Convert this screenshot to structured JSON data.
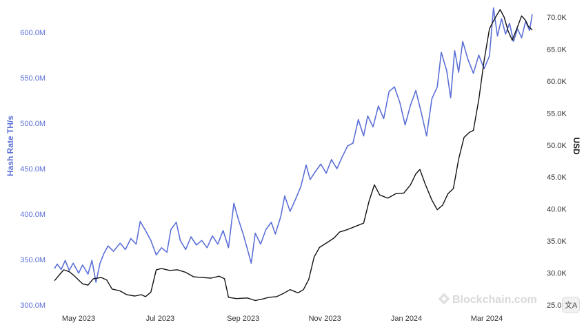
{
  "chart_data": {
    "type": "line",
    "xlabel": "",
    "x_ticks": [
      "May 2023",
      "Jul 2023",
      "Sep 2023",
      "Nov 2023",
      "Jan 2024",
      "Mar 2024"
    ],
    "y_left": {
      "label": "Hash Rate TH/s",
      "ticks": [
        "300.0M",
        "350.0M",
        "400.0M",
        "450.0M",
        "500.0M",
        "550.0M",
        "600.0M"
      ],
      "range": [
        300,
        630
      ],
      "unit": "M TH/s"
    },
    "y_right": {
      "label": "USD",
      "ticks": [
        "25.0K",
        "30.0K",
        "35.0K",
        "40.0K",
        "45.0K",
        "50.0K",
        "55.0K",
        "60.0K",
        "65.0K",
        "70.0K"
      ],
      "range": [
        24500,
        71800
      ],
      "unit": "USD"
    },
    "series": [
      {
        "axis": "left",
        "color": "#5b6fd6",
        "points": [
          [
            "2023-04-13",
            340
          ],
          [
            "2023-04-15",
            345
          ],
          [
            "2023-04-18",
            339
          ],
          [
            "2023-04-21",
            349
          ],
          [
            "2023-04-24",
            338
          ],
          [
            "2023-04-27",
            346
          ],
          [
            "2023-05-01",
            335
          ],
          [
            "2023-05-04",
            344
          ],
          [
            "2023-05-08",
            334
          ],
          [
            "2023-05-11",
            349
          ],
          [
            "2023-05-14",
            325
          ],
          [
            "2023-05-17",
            346
          ],
          [
            "2023-05-20",
            357
          ],
          [
            "2023-05-23",
            365
          ],
          [
            "2023-05-27",
            359
          ],
          [
            "2023-06-01",
            368
          ],
          [
            "2023-06-05",
            361
          ],
          [
            "2023-06-09",
            373
          ],
          [
            "2023-06-13",
            367
          ],
          [
            "2023-06-16",
            392
          ],
          [
            "2023-06-20",
            382
          ],
          [
            "2023-06-24",
            371
          ],
          [
            "2023-06-28",
            355
          ],
          [
            "2023-07-02",
            363
          ],
          [
            "2023-07-06",
            358
          ],
          [
            "2023-07-09",
            383
          ],
          [
            "2023-07-13",
            391
          ],
          [
            "2023-07-16",
            371
          ],
          [
            "2023-07-20",
            361
          ],
          [
            "2023-07-24",
            375
          ],
          [
            "2023-07-28",
            366
          ],
          [
            "2023-08-01",
            371
          ],
          [
            "2023-08-05",
            363
          ],
          [
            "2023-08-09",
            376
          ],
          [
            "2023-08-13",
            367
          ],
          [
            "2023-08-17",
            382
          ],
          [
            "2023-08-21",
            363
          ],
          [
            "2023-08-25",
            412
          ],
          [
            "2023-08-28",
            396
          ],
          [
            "2023-09-01",
            378
          ],
          [
            "2023-09-04",
            362
          ],
          [
            "2023-09-07",
            346
          ],
          [
            "2023-09-10",
            379
          ],
          [
            "2023-09-14",
            367
          ],
          [
            "2023-09-18",
            383
          ],
          [
            "2023-09-22",
            391
          ],
          [
            "2023-09-25",
            378
          ],
          [
            "2023-09-29",
            397
          ],
          [
            "2023-10-02",
            420
          ],
          [
            "2023-10-06",
            403
          ],
          [
            "2023-10-10",
            416
          ],
          [
            "2023-10-14",
            430
          ],
          [
            "2023-10-18",
            454
          ],
          [
            "2023-10-21",
            438
          ],
          [
            "2023-10-25",
            447
          ],
          [
            "2023-10-29",
            455
          ],
          [
            "2023-11-02",
            445
          ],
          [
            "2023-11-06",
            460
          ],
          [
            "2023-11-10",
            450
          ],
          [
            "2023-11-14",
            463
          ],
          [
            "2023-11-18",
            475
          ],
          [
            "2023-11-22",
            478
          ],
          [
            "2023-11-26",
            504
          ],
          [
            "2023-11-30",
            486
          ],
          [
            "2023-12-03",
            508
          ],
          [
            "2023-12-07",
            496
          ],
          [
            "2023-12-11",
            519
          ],
          [
            "2023-12-15",
            505
          ],
          [
            "2023-12-19",
            535
          ],
          [
            "2023-12-23",
            540
          ],
          [
            "2023-12-27",
            523
          ],
          [
            "2023-12-31",
            498
          ],
          [
            "2024-01-04",
            520
          ],
          [
            "2024-01-08",
            536
          ],
          [
            "2024-01-12",
            512
          ],
          [
            "2024-01-16",
            486
          ],
          [
            "2024-01-20",
            527
          ],
          [
            "2024-01-24",
            540
          ],
          [
            "2024-01-27",
            578
          ],
          [
            "2024-01-31",
            558
          ],
          [
            "2024-02-03",
            528
          ],
          [
            "2024-02-06",
            580
          ],
          [
            "2024-02-09",
            556
          ],
          [
            "2024-02-12",
            590
          ],
          [
            "2024-02-16",
            570
          ],
          [
            "2024-02-20",
            555
          ],
          [
            "2024-02-24",
            575
          ],
          [
            "2024-02-28",
            560
          ],
          [
            "2024-03-03",
            574
          ],
          [
            "2024-03-06",
            627
          ],
          [
            "2024-03-09",
            596
          ],
          [
            "2024-03-12",
            615
          ],
          [
            "2024-03-15",
            598
          ],
          [
            "2024-03-18",
            610
          ],
          [
            "2024-03-21",
            590
          ],
          [
            "2024-03-24",
            604
          ],
          [
            "2024-03-27",
            594
          ],
          [
            "2024-03-30",
            612
          ],
          [
            "2024-04-02",
            602
          ],
          [
            "2024-04-04",
            620
          ]
        ]
      },
      {
        "axis": "right",
        "color": "#111111",
        "points": [
          [
            "2023-04-13",
            28800
          ],
          [
            "2023-04-17",
            29800
          ],
          [
            "2023-04-20",
            30500
          ],
          [
            "2023-04-24",
            30200
          ],
          [
            "2023-04-27",
            29700
          ],
          [
            "2023-05-01",
            28900
          ],
          [
            "2023-05-04",
            28300
          ],
          [
            "2023-05-08",
            28100
          ],
          [
            "2023-05-12",
            29100
          ],
          [
            "2023-05-18",
            29300
          ],
          [
            "2023-05-22",
            28900
          ],
          [
            "2023-05-26",
            27500
          ],
          [
            "2023-06-01",
            27200
          ],
          [
            "2023-06-06",
            26600
          ],
          [
            "2023-06-12",
            26400
          ],
          [
            "2023-06-17",
            26600
          ],
          [
            "2023-06-20",
            26300
          ],
          [
            "2023-06-24",
            27000
          ],
          [
            "2023-06-28",
            30500
          ],
          [
            "2023-07-02",
            30700
          ],
          [
            "2023-07-08",
            30400
          ],
          [
            "2023-07-14",
            30500
          ],
          [
            "2023-07-20",
            30100
          ],
          [
            "2023-07-26",
            29400
          ],
          [
            "2023-08-01",
            29300
          ],
          [
            "2023-08-08",
            29200
          ],
          [
            "2023-08-14",
            29500
          ],
          [
            "2023-08-18",
            29100
          ],
          [
            "2023-08-21",
            26200
          ],
          [
            "2023-08-27",
            26000
          ],
          [
            "2023-09-04",
            26100
          ],
          [
            "2023-09-10",
            25700
          ],
          [
            "2023-09-15",
            25900
          ],
          [
            "2023-09-20",
            26200
          ],
          [
            "2023-09-26",
            26300
          ],
          [
            "2023-10-01",
            26800
          ],
          [
            "2023-10-06",
            27400
          ],
          [
            "2023-10-12",
            26900
          ],
          [
            "2023-10-16",
            27400
          ],
          [
            "2023-10-20",
            29000
          ],
          [
            "2023-10-24",
            32500
          ],
          [
            "2023-10-28",
            34000
          ],
          [
            "2023-11-03",
            34800
          ],
          [
            "2023-11-08",
            35500
          ],
          [
            "2023-11-12",
            36400
          ],
          [
            "2023-11-18",
            36800
          ],
          [
            "2023-11-24",
            37300
          ],
          [
            "2023-11-30",
            37800
          ],
          [
            "2023-12-04",
            41200
          ],
          [
            "2023-12-08",
            43800
          ],
          [
            "2023-12-12",
            42200
          ],
          [
            "2023-12-18",
            41700
          ],
          [
            "2023-12-24",
            42400
          ],
          [
            "2023-12-30",
            42500
          ],
          [
            "2024-01-04",
            43800
          ],
          [
            "2024-01-08",
            45500
          ],
          [
            "2024-01-11",
            46200
          ],
          [
            "2024-01-15",
            43900
          ],
          [
            "2024-01-20",
            41400
          ],
          [
            "2024-01-24",
            39900
          ],
          [
            "2024-01-28",
            40600
          ],
          [
            "2024-02-01",
            42400
          ],
          [
            "2024-02-05",
            43200
          ],
          [
            "2024-02-09",
            47800
          ],
          [
            "2024-02-13",
            51200
          ],
          [
            "2024-02-17",
            52000
          ],
          [
            "2024-02-20",
            52300
          ],
          [
            "2024-02-24",
            57100
          ],
          [
            "2024-02-28",
            63200
          ],
          [
            "2024-03-03",
            68200
          ],
          [
            "2024-03-07",
            69800
          ],
          [
            "2024-03-11",
            71200
          ],
          [
            "2024-03-14",
            70000
          ],
          [
            "2024-03-17",
            67800
          ],
          [
            "2024-03-20",
            66400
          ],
          [
            "2024-03-24",
            68500
          ],
          [
            "2024-03-27",
            70200
          ],
          [
            "2024-03-30",
            69500
          ],
          [
            "2024-04-01",
            68600
          ],
          [
            "2024-04-04",
            68000
          ]
        ]
      }
    ],
    "x_range": [
      "2023-04-06",
      "2024-04-12"
    ],
    "grid": false,
    "legend": "none"
  },
  "watermark": "Blockchain.com",
  "translate_icon": "translate-icon"
}
